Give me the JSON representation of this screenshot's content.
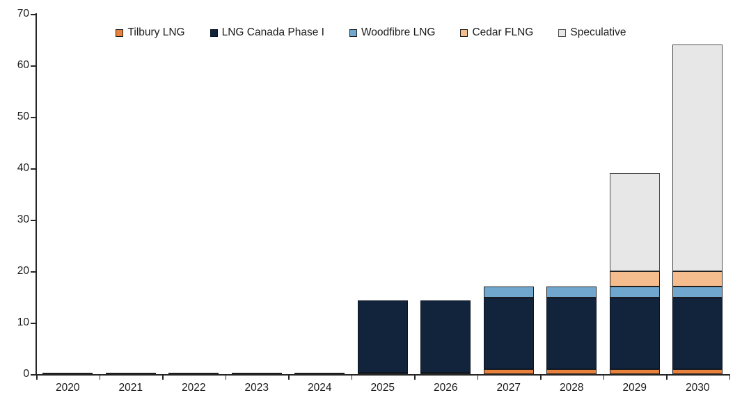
{
  "chart_data": {
    "type": "bar",
    "stacked": true,
    "title": "",
    "xlabel": "",
    "ylabel": "",
    "ylim": [
      0,
      70
    ],
    "ytick_interval": 10,
    "grid": false,
    "legend_position": "top",
    "categories": [
      "2020",
      "2021",
      "2022",
      "2023",
      "2024",
      "2025",
      "2026",
      "2027",
      "2028",
      "2029",
      "2030"
    ],
    "series": [
      {
        "name": "Tilbury LNG",
        "color": "#E8813B",
        "border_color": "#1f1f1f",
        "values": [
          0.3,
          0.3,
          0.3,
          0.3,
          0.3,
          0.3,
          0.3,
          0.9,
          0.9,
          0.9,
          0.9
        ]
      },
      {
        "name": "LNG Canada Phase I",
        "color": "#12233C",
        "border_color": "#0a1322",
        "values": [
          0,
          0,
          0,
          0,
          0,
          14,
          14,
          14,
          14,
          14,
          14
        ]
      },
      {
        "name": "Woodfibre LNG",
        "color": "#70A7CE",
        "border_color": "#1f1f1f",
        "values": [
          0,
          0,
          0,
          0,
          0,
          0,
          0,
          2.1,
          2.1,
          2.1,
          2.1
        ]
      },
      {
        "name": "Cedar FLNG",
        "color": "#F5BD8E",
        "border_color": "#1f1f1f",
        "values": [
          0,
          0,
          0,
          0,
          0,
          0,
          0,
          0,
          0,
          3,
          3
        ]
      },
      {
        "name": "Speculative",
        "color": "#E8E7E7",
        "border_color": "#4d4d4d",
        "values": [
          0,
          0,
          0,
          0,
          0,
          0,
          0,
          0,
          0,
          19,
          44
        ]
      }
    ],
    "totals": [
      0.3,
      0.3,
      0.3,
      0.3,
      0.3,
      14.3,
      14.3,
      17.0,
      17.0,
      39.0,
      64.0
    ],
    "y_tick_labels": [
      "0",
      "10",
      "20",
      "30",
      "40",
      "50",
      "60",
      "70"
    ],
    "colors": {
      "background": "#ffffff",
      "axis": "#262626",
      "text": "#1a1a1a"
    }
  }
}
